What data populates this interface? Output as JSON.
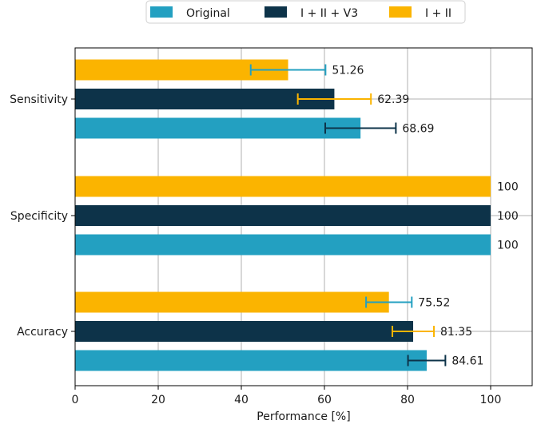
{
  "chart_data": {
    "type": "bar",
    "orientation": "horizontal",
    "xlabel": "Performance [%]",
    "ylabel": "",
    "xlim": [
      0,
      110
    ],
    "xticks": [
      0,
      20,
      40,
      60,
      80,
      100
    ],
    "grid": true,
    "legend_position": "top-center",
    "categories": [
      "Sensitivity",
      "Specificity",
      "Accuracy"
    ],
    "series": [
      {
        "name": "Original",
        "color": "#23a0c1",
        "values": [
          68.69,
          100,
          84.61
        ],
        "errors": [
          8.5,
          0,
          4.5
        ],
        "error_color": "#0d3349"
      },
      {
        "name": "I + II + V3",
        "color": "#0d3349",
        "values": [
          62.39,
          100,
          81.35
        ],
        "errors": [
          8.8,
          0,
          5.0
        ],
        "error_color": "#fbb400"
      },
      {
        "name": "I + II",
        "color": "#fbb400",
        "values": [
          51.26,
          100,
          75.52
        ],
        "errors": [
          9.0,
          0,
          5.5
        ],
        "error_color": "#23a0c1"
      }
    ],
    "value_labels": {
      "Sensitivity": [
        "68.69",
        "62.39",
        "51.26"
      ],
      "Specificity": [
        "100",
        "100",
        "100"
      ],
      "Accuracy": [
        "84.61",
        "81.35",
        "75.52"
      ]
    }
  }
}
